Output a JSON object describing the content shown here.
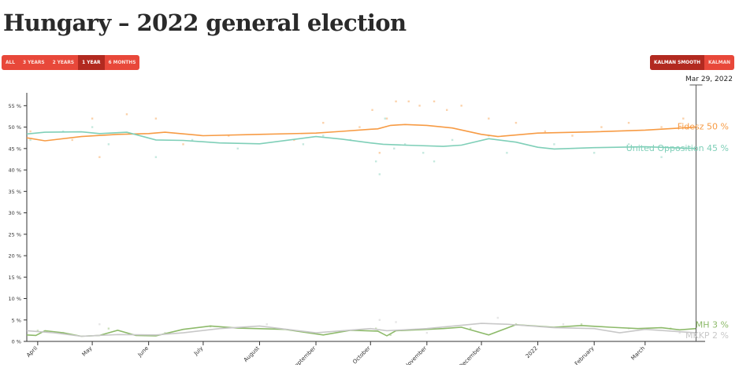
{
  "title": "Hungary – 2022 general election",
  "range_buttons": [
    {
      "label": "ALL",
      "active": false
    },
    {
      "label": "3 YEARS",
      "active": false
    },
    {
      "label": "2 YEARS",
      "active": false
    },
    {
      "label": "1 YEAR",
      "active": true
    },
    {
      "label": "6 MONTHS",
      "active": false
    }
  ],
  "mode_buttons": [
    {
      "label": "KALMAN SMOOTH",
      "active": true
    },
    {
      "label": "KALMAN",
      "active": false
    }
  ],
  "hover_date": "Mar 29, 2022",
  "chart_data": {
    "type": "line",
    "title": "Hungary – 2022 general election",
    "xlabel": "",
    "ylabel": "",
    "ylim": [
      0,
      58
    ],
    "xlim": [
      "2021-03-26",
      "2022-04-03"
    ],
    "yticks": [
      0,
      5,
      10,
      15,
      20,
      25,
      30,
      35,
      40,
      45,
      50,
      55
    ],
    "ytick_format": "{v} %",
    "xticks": [
      {
        "date": "2021-04-01",
        "label": "April"
      },
      {
        "date": "2021-05-01",
        "label": "May"
      },
      {
        "date": "2021-06-01",
        "label": "June"
      },
      {
        "date": "2021-07-01",
        "label": "July"
      },
      {
        "date": "2021-08-01",
        "label": "August"
      },
      {
        "date": "2021-09-01",
        "label": "September"
      },
      {
        "date": "2021-10-01",
        "label": "October"
      },
      {
        "date": "2021-11-01",
        "label": "November"
      },
      {
        "date": "2021-12-01",
        "label": "December"
      },
      {
        "date": "2022-01-01",
        "label": "2022"
      },
      {
        "date": "2022-02-01",
        "label": "February"
      },
      {
        "date": "2022-03-01",
        "label": "March"
      }
    ],
    "grid": false,
    "legend": "end-labels",
    "series": [
      {
        "name": "Fidesz",
        "end_label": "Fidesz  50 %",
        "color": "#f79b44",
        "line": [
          [
            "2021-03-26",
            47.5
          ],
          [
            "2021-04-05",
            46.8
          ],
          [
            "2021-04-25",
            47.8
          ],
          [
            "2021-05-15",
            48.3
          ],
          [
            "2021-06-01",
            48.5
          ],
          [
            "2021-06-10",
            48.8
          ],
          [
            "2021-07-01",
            48.0
          ],
          [
            "2021-08-01",
            48.3
          ],
          [
            "2021-09-01",
            48.6
          ],
          [
            "2021-09-15",
            49.0
          ],
          [
            "2021-10-01",
            49.5
          ],
          [
            "2021-10-05",
            49.6
          ],
          [
            "2021-10-12",
            50.4
          ],
          [
            "2021-10-20",
            50.6
          ],
          [
            "2021-11-01",
            50.4
          ],
          [
            "2021-11-15",
            49.8
          ],
          [
            "2021-12-01",
            48.3
          ],
          [
            "2021-12-10",
            47.8
          ],
          [
            "2022-01-01",
            48.6
          ],
          [
            "2022-02-01",
            48.9
          ],
          [
            "2022-03-01",
            49.3
          ],
          [
            "2022-03-29",
            50.0
          ]
        ],
        "points": [
          [
            "2021-03-28",
            49
          ],
          [
            "2021-04-20",
            47
          ],
          [
            "2021-05-01",
            52
          ],
          [
            "2021-05-05",
            43
          ],
          [
            "2021-05-20",
            53
          ],
          [
            "2021-06-05",
            52
          ],
          [
            "2021-06-20",
            46
          ],
          [
            "2021-07-15",
            48
          ],
          [
            "2021-08-20",
            47
          ],
          [
            "2021-09-05",
            51
          ],
          [
            "2021-09-25",
            50
          ],
          [
            "2021-10-02",
            54
          ],
          [
            "2021-10-06",
            44
          ],
          [
            "2021-10-10",
            52
          ],
          [
            "2021-10-15",
            56
          ],
          [
            "2021-10-22",
            56
          ],
          [
            "2021-10-28",
            55
          ],
          [
            "2021-11-05",
            56
          ],
          [
            "2021-11-12",
            54
          ],
          [
            "2021-11-20",
            55
          ],
          [
            "2021-12-05",
            52
          ],
          [
            "2021-12-20",
            51
          ],
          [
            "2022-01-05",
            49
          ],
          [
            "2022-01-20",
            48
          ],
          [
            "2022-02-05",
            50
          ],
          [
            "2022-02-20",
            51
          ],
          [
            "2022-03-10",
            50
          ],
          [
            "2022-03-22",
            52
          ]
        ]
      },
      {
        "name": "United Opposition",
        "end_label": "United Opposition  45 %",
        "color": "#7fcfb8",
        "line": [
          [
            "2021-03-26",
            48.4
          ],
          [
            "2021-04-05",
            48.8
          ],
          [
            "2021-04-25",
            48.9
          ],
          [
            "2021-05-05",
            48.5
          ],
          [
            "2021-05-20",
            48.8
          ],
          [
            "2021-06-05",
            47.0
          ],
          [
            "2021-06-20",
            46.9
          ],
          [
            "2021-07-10",
            46.3
          ],
          [
            "2021-08-01",
            46.1
          ],
          [
            "2021-09-01",
            47.8
          ],
          [
            "2021-09-15",
            47.2
          ],
          [
            "2021-10-01",
            46.3
          ],
          [
            "2021-10-08",
            46.0
          ],
          [
            "2021-10-20",
            45.8
          ],
          [
            "2021-11-10",
            45.5
          ],
          [
            "2021-11-20",
            45.8
          ],
          [
            "2021-12-05",
            47.3
          ],
          [
            "2021-12-20",
            46.5
          ],
          [
            "2022-01-01",
            45.3
          ],
          [
            "2022-01-10",
            44.9
          ],
          [
            "2022-02-01",
            45.2
          ],
          [
            "2022-03-01",
            45.4
          ],
          [
            "2022-03-29",
            45.0
          ]
        ],
        "points": [
          [
            "2021-03-28",
            47
          ],
          [
            "2021-04-15",
            49
          ],
          [
            "2021-05-01",
            50
          ],
          [
            "2021-05-10",
            46
          ],
          [
            "2021-06-05",
            43
          ],
          [
            "2021-06-25",
            47
          ],
          [
            "2021-07-20",
            45
          ],
          [
            "2021-08-25",
            46
          ],
          [
            "2021-09-05",
            48
          ],
          [
            "2021-09-20",
            47
          ],
          [
            "2021-10-04",
            42
          ],
          [
            "2021-10-06",
            39
          ],
          [
            "2021-10-09",
            52
          ],
          [
            "2021-10-14",
            45
          ],
          [
            "2021-10-20",
            46
          ],
          [
            "2021-10-30",
            44
          ],
          [
            "2021-11-05",
            42
          ],
          [
            "2021-11-15",
            47
          ],
          [
            "2021-12-05",
            48
          ],
          [
            "2021-12-15",
            44
          ],
          [
            "2022-01-10",
            46
          ],
          [
            "2022-02-01",
            44
          ],
          [
            "2022-02-20",
            46
          ],
          [
            "2022-03-10",
            43
          ],
          [
            "2022-03-20",
            45
          ]
        ]
      },
      {
        "name": "MH",
        "end_label": "MH  3 %",
        "color": "#8dba6a",
        "line": [
          [
            "2021-03-26",
            1.5
          ],
          [
            "2021-03-31",
            1.4
          ],
          [
            "2021-04-05",
            2.5
          ],
          [
            "2021-04-15",
            2.0
          ],
          [
            "2021-04-25",
            1.2
          ],
          [
            "2021-05-05",
            1.4
          ],
          [
            "2021-05-15",
            2.6
          ],
          [
            "2021-05-25",
            1.4
          ],
          [
            "2021-06-05",
            1.3
          ],
          [
            "2021-06-20",
            2.8
          ],
          [
            "2021-07-05",
            3.6
          ],
          [
            "2021-07-20",
            3.1
          ],
          [
            "2021-08-15",
            2.8
          ],
          [
            "2021-09-05",
            1.5
          ],
          [
            "2021-09-20",
            2.6
          ],
          [
            "2021-10-05",
            2.4
          ],
          [
            "2021-10-10",
            1.3
          ],
          [
            "2021-10-15",
            2.5
          ],
          [
            "2021-11-01",
            2.8
          ],
          [
            "2021-11-10",
            3.0
          ],
          [
            "2021-11-20",
            3.3
          ],
          [
            "2021-12-05",
            1.5
          ],
          [
            "2021-12-20",
            3.9
          ],
          [
            "2022-01-10",
            3.3
          ],
          [
            "2022-01-25",
            3.7
          ],
          [
            "2022-02-10",
            3.3
          ],
          [
            "2022-02-25",
            3.0
          ],
          [
            "2022-03-10",
            3.2
          ],
          [
            "2022-03-20",
            2.7
          ],
          [
            "2022-03-29",
            3.0
          ]
        ],
        "points": [
          [
            "2021-04-01",
            2.5
          ],
          [
            "2021-05-10",
            3
          ],
          [
            "2021-07-05",
            3.5
          ],
          [
            "2021-10-04",
            3
          ],
          [
            "2021-10-12",
            1.5
          ],
          [
            "2021-11-25",
            3
          ],
          [
            "2021-12-20",
            4
          ],
          [
            "2022-01-25",
            4
          ],
          [
            "2022-03-15",
            3
          ]
        ]
      },
      {
        "name": "MKKP",
        "end_label": "MKKP  2 %",
        "color": "#c8c8c8",
        "line": [
          [
            "2021-03-26",
            2.5
          ],
          [
            "2021-04-10",
            2.0
          ],
          [
            "2021-04-25",
            1.2
          ],
          [
            "2021-05-15",
            1.6
          ],
          [
            "2021-06-05",
            1.5
          ],
          [
            "2021-06-20",
            2.0
          ],
          [
            "2021-07-10",
            3.0
          ],
          [
            "2021-08-01",
            3.6
          ],
          [
            "2021-09-01",
            2.0
          ],
          [
            "2021-10-01",
            3.0
          ],
          [
            "2021-10-10",
            2.5
          ],
          [
            "2021-11-01",
            3.0
          ],
          [
            "2021-12-01",
            4.2
          ],
          [
            "2021-12-15",
            4.0
          ],
          [
            "2022-01-10",
            3.2
          ],
          [
            "2022-02-01",
            3.0
          ],
          [
            "2022-02-15",
            2.0
          ],
          [
            "2022-03-01",
            2.8
          ],
          [
            "2022-03-29",
            2.0
          ]
        ],
        "points": [
          [
            "2021-04-15",
            2
          ],
          [
            "2021-05-05",
            4
          ],
          [
            "2021-06-10",
            2
          ],
          [
            "2021-08-05",
            4
          ],
          [
            "2021-10-06",
            5
          ],
          [
            "2021-10-15",
            4.5
          ],
          [
            "2021-11-01",
            2
          ],
          [
            "2021-12-10",
            5.5
          ],
          [
            "2022-01-15",
            4
          ],
          [
            "2022-02-20",
            3
          ],
          [
            "2022-03-20",
            2
          ]
        ]
      }
    ]
  }
}
